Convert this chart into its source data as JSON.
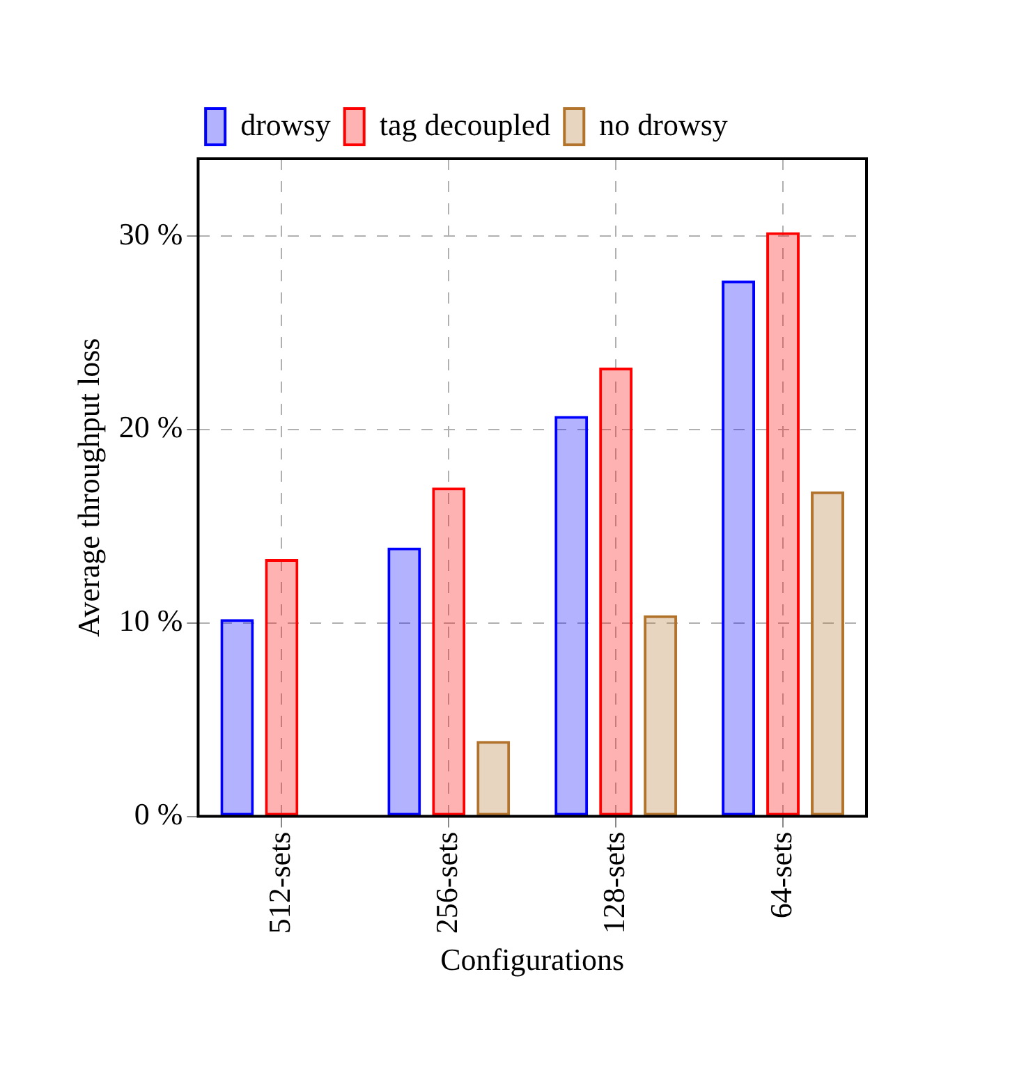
{
  "chart_data": {
    "type": "bar",
    "xlabel": "Configurations",
    "ylabel": "Average throughput loss",
    "categories": [
      "512-sets",
      "256-sets",
      "128-sets",
      "64-sets"
    ],
    "series": [
      {
        "name": "drowsy",
        "color": "#0000ff",
        "values": [
          10.2,
          13.9,
          20.7,
          27.7
        ]
      },
      {
        "name": "tag decoupled",
        "color": "#ff0000",
        "values": [
          13.3,
          17.0,
          23.2,
          30.2
        ]
      },
      {
        "name": "no drowsy",
        "color": "#b2732d",
        "values": [
          null,
          3.9,
          10.4,
          16.8
        ]
      }
    ],
    "ylim": [
      0,
      34
    ],
    "yticks": [
      {
        "value": 0,
        "label": "0 %"
      },
      {
        "value": 10,
        "label": "10 %"
      },
      {
        "value": 20,
        "label": "20 %"
      },
      {
        "value": 30,
        "label": "30 %"
      }
    ],
    "grid": true,
    "legend": "top"
  }
}
